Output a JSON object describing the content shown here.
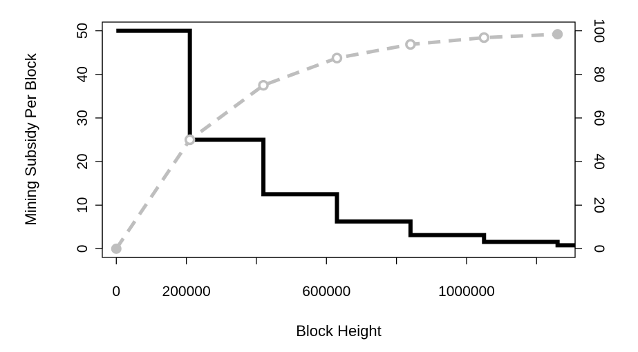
{
  "chart_data": {
    "type": "line",
    "title": "",
    "xlabel": "Block Height",
    "ylabel": "Mining Subsidy Per Block",
    "y2label": "",
    "xlim": [
      -40000,
      1310000
    ],
    "ylim": [
      -2,
      52
    ],
    "y2lim": [
      -4,
      104
    ],
    "x_ticks": [
      0,
      200000,
      400000,
      600000,
      800000,
      1000000,
      1200000
    ],
    "x_tick_labels": [
      "0",
      "200000",
      "",
      "600000",
      "",
      "1000000",
      ""
    ],
    "y_ticks": [
      0,
      10,
      20,
      30,
      40,
      50
    ],
    "y_tick_labels": [
      "0",
      "10",
      "20",
      "30",
      "40",
      "50"
    ],
    "y2_ticks": [
      0,
      20,
      40,
      60,
      80,
      100
    ],
    "y2_tick_labels": [
      "0",
      "20",
      "40",
      "60",
      "80",
      "100"
    ],
    "grid": false,
    "legend": "none",
    "series": [
      {
        "axis": "left",
        "style": "step",
        "color": "#000000",
        "x": [
          0,
          210000,
          420000,
          630000,
          840000,
          1050000,
          1260000,
          1310000
        ],
        "values": [
          50,
          25,
          12.5,
          6.25,
          3.125,
          1.5625,
          0.78125,
          0.78125
        ]
      },
      {
        "axis": "right",
        "style": "dashed-markers",
        "color": "#bebebe",
        "x": [
          0,
          210000,
          420000,
          630000,
          840000,
          1050000,
          1260000
        ],
        "values": [
          0,
          50,
          75,
          87.5,
          93.75,
          96.875,
          98.4375
        ]
      }
    ]
  }
}
